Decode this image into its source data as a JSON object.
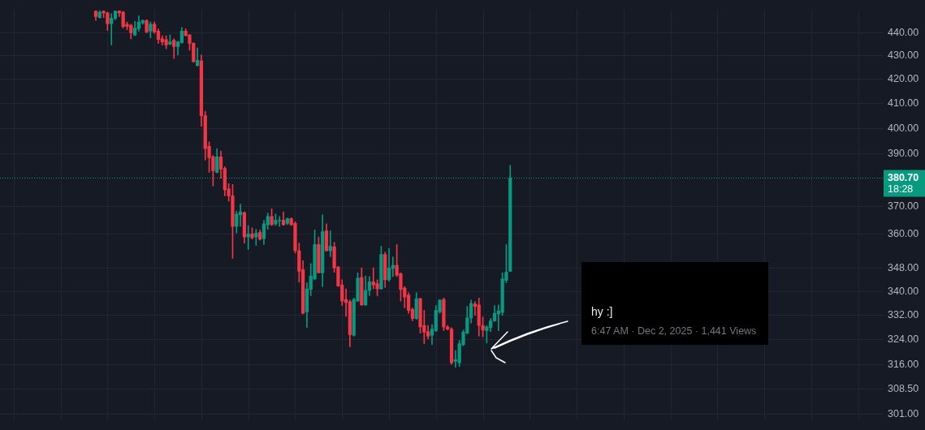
{
  "chart_data": {
    "type": "candlestick",
    "categories": [
      null,
      null,
      null,
      null,
      null,
      null,
      null,
      null,
      null,
      null,
      null,
      null,
      null,
      null,
      null,
      null,
      null,
      null,
      null,
      null,
      null,
      null,
      null,
      null,
      null,
      null,
      null,
      null,
      null,
      null,
      null,
      null,
      null,
      null,
      null,
      null,
      null,
      null,
      null,
      null,
      null,
      null,
      null,
      null,
      null,
      null,
      null,
      null,
      null,
      null,
      null,
      null,
      null,
      null,
      null,
      null,
      null,
      null,
      null,
      null,
      null,
      null,
      null,
      null,
      null,
      null,
      null,
      null,
      null,
      null,
      null,
      null,
      null,
      null,
      null,
      null,
      null,
      null,
      null,
      null,
      null,
      null,
      null,
      null,
      null,
      null,
      null,
      null,
      null,
      null,
      null,
      null,
      null,
      null,
      null,
      null,
      null,
      null,
      null,
      null,
      null,
      null,
      null,
      null,
      null,
      null,
      null,
      null,
      null,
      null,
      null,
      null,
      null,
      null,
      null,
      null,
      null,
      null,
      null,
      null,
      null,
      null,
      null,
      null,
      null,
      null,
      null,
      null,
      null,
      null,
      null,
      null,
      null,
      null,
      null,
      null,
      null,
      null,
      null,
      null,
      null,
      null,
      null,
      null,
      null,
      null,
      null,
      null,
      null,
      null,
      null,
      null,
      null,
      null,
      null,
      null,
      null,
      null,
      null,
      null,
      null,
      null,
      null,
      null,
      null,
      null,
      null,
      null,
      null,
      null,
      null,
      null,
      null,
      null,
      null,
      null,
      null,
      null,
      null,
      null,
      null,
      null,
      null,
      null,
      null,
      null,
      null,
      null,
      null,
      null,
      null,
      null,
      null,
      null,
      null,
      null,
      null,
      null,
      null,
      null,
      null,
      null,
      null,
      null,
      null,
      null,
      null,
      null,
      null,
      null,
      null,
      null,
      null,
      null,
      null,
      null,
      null,
      null,
      null,
      null,
      null,
      null,
      null,
      null,
      null,
      null
    ],
    "ohlc": [
      null,
      null,
      null,
      null,
      null,
      null,
      null,
      null,
      null,
      null,
      null,
      null,
      null,
      null,
      null,
      null,
      null,
      null,
      null,
      null,
      null,
      null,
      null,
      null,
      [
        449.5,
        449.8,
        445.4,
        447.1
      ],
      [
        446.7,
        449.8,
        446.4,
        449.1
      ],
      [
        449.5,
        449.8,
        446.7,
        448.8
      ],
      [
        448.8,
        449.1,
        441.0,
        444.0
      ],
      [
        444.0,
        448.4,
        434.7,
        446.4
      ],
      [
        446.4,
        449.8,
        445.7,
        449.5
      ],
      [
        449.6,
        449.8,
        447.1,
        448.8
      ],
      [
        449.1,
        449.5,
        442.0,
        442.7
      ],
      [
        443.7,
        444.7,
        441.3,
        442.7
      ],
      [
        443.3,
        443.7,
        437.3,
        440.0
      ],
      [
        439.0,
        445.0,
        438.7,
        442.0
      ],
      [
        441.7,
        447.4,
        440.7,
        444.7
      ],
      [
        444.3,
        445.7,
        443.7,
        445.4
      ],
      [
        445.4,
        445.7,
        440.0,
        440.3
      ],
      [
        440.7,
        444.7,
        437.7,
        443.7
      ],
      [
        443.7,
        444.7,
        439.7,
        440.3
      ],
      [
        440.7,
        441.7,
        435.4,
        437.0
      ],
      [
        437.3,
        438.7,
        434.7,
        436.0
      ],
      [
        437.0,
        438.7,
        433.0,
        434.7
      ],
      [
        435.0,
        439.0,
        434.7,
        436.0
      ],
      [
        436.7,
        437.3,
        428.8,
        434.0
      ],
      [
        434.0,
        436.3,
        430.4,
        436.0
      ],
      [
        435.7,
        442.3,
        435.4,
        440.7
      ],
      [
        440.7,
        441.7,
        438.5,
        438.7
      ],
      [
        439.0,
        439.3,
        432.4,
        435.4
      ],
      [
        435.4,
        435.7,
        427.2,
        427.5
      ],
      [
        425.9,
        433.4,
        425.5,
        428.1
      ],
      [
        427.8,
        430.4,
        400.8,
        405.1
      ],
      [
        405.1,
        406.9,
        387.6,
        392.0
      ],
      [
        392.9,
        394.7,
        382.9,
        388.5
      ],
      [
        388.8,
        389.4,
        377.7,
        383.5
      ],
      [
        382.9,
        392.0,
        382.6,
        388.8
      ],
      [
        388.8,
        391.1,
        380.6,
        384.1
      ],
      [
        384.4,
        385.0,
        374.0,
        376.3
      ],
      [
        376.6,
        378.6,
        372.0,
        374.0
      ],
      [
        374.0,
        378.3,
        351.4,
        362.8
      ],
      [
        362.8,
        368.4,
        360.4,
        367.3
      ],
      [
        367.0,
        370.9,
        362.8,
        368.1
      ],
      [
        367.8,
        368.1,
        356.8,
        359.0
      ],
      [
        359.0,
        363.1,
        354.6,
        360.1
      ],
      [
        360.1,
        362.3,
        358.2,
        358.7
      ],
      [
        359.0,
        361.7,
        356.0,
        360.4
      ],
      [
        360.6,
        361.5,
        357.9,
        358.2
      ],
      [
        358.4,
        365.0,
        356.3,
        363.7
      ],
      [
        363.4,
        367.6,
        361.7,
        366.4
      ],
      [
        366.4,
        369.2,
        363.1,
        363.4
      ],
      [
        363.7,
        367.3,
        363.1,
        365.0
      ],
      [
        364.8,
        366.4,
        362.8,
        365.0
      ],
      [
        365.0,
        368.1,
        363.1,
        363.4
      ],
      [
        363.9,
        365.9,
        363.4,
        365.6
      ],
      [
        365.6,
        365.9,
        363.1,
        363.4
      ],
      [
        363.9,
        364.5,
        353.3,
        354.1
      ],
      [
        354.1,
        356.8,
        343.2,
        346.9
      ],
      [
        347.5,
        350.6,
        332.5,
        332.7
      ],
      [
        333.2,
        343.0,
        328.0,
        340.9
      ],
      [
        340.7,
        349.6,
        338.6,
        345.3
      ],
      [
        344.3,
        361.5,
        344.0,
        356.3
      ],
      [
        356.3,
        359.0,
        346.4,
        346.4
      ],
      [
        346.4,
        367.0,
        341.7,
        360.9
      ],
      [
        361.2,
        363.7,
        354.0,
        354.1
      ],
      [
        354.1,
        361.2,
        352.0,
        355.7
      ],
      [
        355.5,
        357.1,
        346.6,
        348.1
      ],
      [
        348.4,
        348.6,
        341.7,
        341.9
      ],
      [
        342.2,
        344.0,
        335.3,
        336.8
      ],
      [
        337.3,
        340.9,
        331.7,
        336.3
      ],
      [
        336.6,
        337.1,
        321.8,
        325.7
      ],
      [
        325.5,
        337.8,
        325.2,
        337.3
      ],
      [
        336.8,
        346.4,
        336.6,
        344.6
      ],
      [
        344.8,
        348.1,
        335.3,
        335.5
      ],
      [
        335.5,
        345.3,
        335.3,
        340.4
      ],
      [
        340.4,
        345.1,
        338.6,
        343.3
      ],
      [
        343.3,
        348.1,
        340.9,
        342.2
      ],
      [
        342.7,
        344.0,
        338.6,
        340.9
      ],
      [
        340.9,
        355.7,
        340.7,
        352.8
      ],
      [
        352.8,
        353.6,
        341.4,
        344.0
      ],
      [
        344.0,
        354.9,
        343.5,
        348.1
      ],
      [
        347.9,
        351.9,
        345.1,
        349.0
      ],
      [
        349.0,
        356.3,
        345.1,
        345.6
      ],
      [
        346.1,
        346.4,
        336.8,
        340.7
      ],
      [
        341.2,
        341.7,
        334.5,
        338.1
      ],
      [
        338.8,
        339.6,
        332.7,
        333.7
      ],
      [
        334.0,
        334.5,
        330.2,
        331.0
      ],
      [
        331.0,
        339.6,
        330.7,
        337.6
      ],
      [
        337.6,
        337.8,
        326.2,
        328.2
      ],
      [
        328.7,
        333.7,
        322.8,
        326.5
      ],
      [
        326.7,
        328.7,
        324.3,
        325.2
      ],
      [
        325.5,
        329.0,
        322.5,
        327.5
      ],
      [
        327.0,
        335.3,
        326.7,
        333.7
      ],
      [
        333.2,
        337.3,
        332.7,
        337.1
      ],
      [
        337.3,
        337.8,
        327.0,
        328.2
      ],
      [
        328.2,
        328.7,
        327.2,
        327.5
      ],
      [
        327.5,
        328.0,
        316.2,
        316.7
      ],
      [
        317.2,
        320.6,
        315.3,
        317.7
      ],
      [
        316.7,
        323.8,
        315.5,
        322.8
      ],
      [
        322.5,
        327.2,
        322.1,
        326.5
      ],
      [
        326.2,
        335.0,
        326.0,
        331.2
      ],
      [
        331.2,
        337.1,
        329.5,
        336.0
      ],
      [
        335.8,
        336.6,
        332.0,
        335.0
      ],
      [
        335.5,
        337.8,
        325.2,
        328.7
      ],
      [
        328.7,
        331.5,
        325.0,
        327.2
      ],
      [
        327.0,
        328.7,
        323.0,
        328.2
      ],
      [
        328.0,
        331.0,
        326.7,
        330.2
      ],
      [
        330.2,
        335.3,
        330.0,
        332.7
      ],
      [
        332.5,
        335.5,
        327.0,
        333.5
      ],
      [
        333.0,
        346.4,
        332.0,
        344.3
      ],
      [
        343.8,
        356.3,
        343.0,
        346.6
      ],
      [
        346.9,
        385.5,
        346.9,
        380.7
      ],
      null,
      null,
      null,
      null,
      null,
      null,
      null,
      null,
      null,
      null,
      null,
      null,
      null,
      null,
      null,
      null,
      null,
      null,
      null,
      null,
      null,
      null,
      null,
      null,
      null,
      null,
      null,
      null,
      null,
      null,
      null,
      null,
      null,
      null,
      null,
      null,
      null,
      null,
      null,
      null,
      null,
      null,
      null,
      null,
      null,
      null,
      null,
      null,
      null,
      null,
      null,
      null,
      null,
      null,
      null,
      null,
      null,
      null,
      null,
      null,
      null,
      null,
      null,
      null,
      null,
      null,
      null,
      null,
      null,
      null,
      null,
      null,
      null,
      null,
      null,
      null,
      null,
      null,
      null,
      null,
      null,
      null,
      null,
      null,
      null,
      null,
      null,
      null,
      null,
      null,
      null,
      null,
      null,
      null,
      null
    ],
    "colors": [
      null,
      null,
      null,
      null,
      null,
      null,
      null,
      null,
      null,
      null,
      null,
      null,
      null,
      null,
      null,
      null,
      null,
      null,
      null,
      null,
      null,
      null,
      null,
      null,
      "#f23645",
      "#089981",
      "#f23645",
      "#f23645",
      "#089981",
      "#089981",
      "#f23645",
      "#f23645",
      "#f23645",
      "#f23645",
      "#089981",
      "#089981",
      "#089981",
      "#f23645",
      "#089981",
      "#f23645",
      "#f23645",
      "#f23645",
      "#f23645",
      "#089981",
      "#f23645",
      "#089981",
      "#089981",
      "#f23645",
      "#f23645",
      "#f23645",
      "#089981",
      "#f23645",
      "#f23645",
      "#f23645",
      "#f23645",
      "#089981",
      "#f23645",
      "#f23645",
      "#f23645",
      "#f23645",
      "#089981",
      "#089981",
      "#f23645",
      "#089981",
      "#f23645",
      "#089981",
      "#f23645",
      "#089981",
      "#089981",
      "#f23645",
      "#089981",
      "#089981",
      "#f23645",
      "#089981",
      "#f23645",
      "#f23645",
      "#f23645",
      "#f23645",
      "#089981",
      "#089981",
      "#089981",
      "#f23645",
      "#089981",
      "#f23645",
      "#089981",
      "#f23645",
      "#f23645",
      "#f23645",
      "#f23645",
      "#f23645",
      "#089981",
      "#089981",
      "#f23645",
      "#089981",
      "#089981",
      "#f23645",
      "#f23645",
      "#089981",
      "#f23645",
      "#089981",
      "#089981",
      "#f23645",
      "#f23645",
      "#f23645",
      "#f23645",
      "#f23645",
      "#089981",
      "#f23645",
      "#f23645",
      "#f23645",
      "#089981",
      "#089981",
      "#089981",
      "#f23645",
      "#f23645",
      "#f23645",
      "#089981",
      "#089981",
      "#089981",
      "#089981",
      "#089981",
      "#f23645",
      "#f23645",
      "#f23645",
      "#089981",
      "#089981",
      "#089981",
      "#089981",
      "#089981",
      "#089981",
      "#089981",
      null,
      null,
      null,
      null,
      null,
      null,
      null,
      null,
      null,
      null,
      null,
      null,
      null,
      null,
      null,
      null,
      null,
      null,
      null,
      null,
      null,
      null,
      null,
      null,
      null,
      null,
      null,
      null,
      null,
      null,
      null,
      null,
      null,
      null,
      null,
      null,
      null,
      null,
      null,
      null,
      null,
      null,
      null,
      null,
      null,
      null,
      null,
      null,
      null,
      null,
      null,
      null,
      null,
      null,
      null,
      null,
      null,
      null,
      null,
      null,
      null,
      null,
      null,
      null,
      null,
      null,
      null,
      null,
      null,
      null,
      null,
      null,
      null,
      null,
      null,
      null,
      null,
      null,
      null,
      null,
      null,
      null,
      null,
      null,
      null,
      null,
      null,
      null,
      null,
      null,
      null,
      null,
      null,
      null,
      null
    ],
    "ylim": [
      299.2,
      450
    ],
    "yticks": [
      {
        "value": 301,
        "label": "301.00"
      },
      {
        "value": 308.5,
        "label": "308.50"
      },
      {
        "value": 316,
        "label": "316.00"
      },
      {
        "value": 324,
        "label": "324.00"
      },
      {
        "value": 332,
        "label": "332.00"
      },
      {
        "value": 340,
        "label": "340.00"
      },
      {
        "value": 348,
        "label": "348.00"
      },
      {
        "value": 360,
        "label": "360.00"
      },
      {
        "value": 370,
        "label": "370.00"
      },
      {
        "value": 390,
        "label": "390.00"
      },
      {
        "value": 400,
        "label": "400.00"
      },
      {
        "value": 410,
        "label": "410.00"
      },
      {
        "value": 420,
        "label": "420.00"
      },
      {
        "value": 430,
        "label": "430.00"
      },
      {
        "value": 440,
        "label": "440.00"
      }
    ],
    "log": true,
    "grid": true,
    "tick_labels": "y",
    "ref_lines": [
      {
        "axis": "y",
        "value": 380.7,
        "label": "380.70",
        "color": "#089981",
        "line_style": "dotted"
      }
    ],
    "annotations": [
      "18:28",
      "hy :]",
      "6:47 AM · Dec 2, 2025 · 1,441 Views"
    ]
  }
}
